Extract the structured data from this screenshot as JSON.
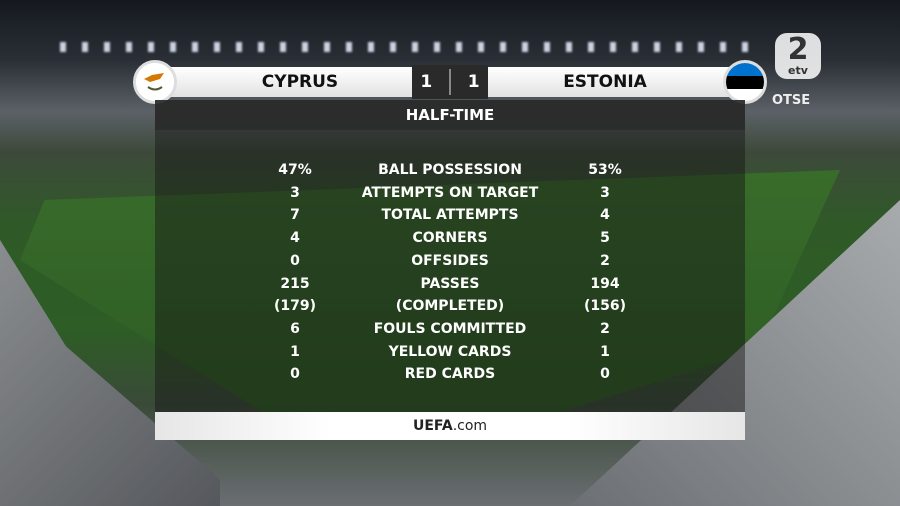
{
  "broadcaster": {
    "channel": "2",
    "network": "etv",
    "live_label": "OTSE"
  },
  "match": {
    "home_team": "CYPRUS",
    "away_team": "ESTONIA",
    "home_score": "1",
    "away_score": "1",
    "status": "HALF-TIME"
  },
  "stats": [
    {
      "label": "BALL POSSESSION",
      "home": "47%",
      "away": "53%"
    },
    {
      "label": "ATTEMPTS ON TARGET",
      "home": "3",
      "away": "3"
    },
    {
      "label": "TOTAL ATTEMPTS",
      "home": "7",
      "away": "4"
    },
    {
      "label": "CORNERS",
      "home": "4",
      "away": "5"
    },
    {
      "label": "OFFSIDES",
      "home": "0",
      "away": "2"
    },
    {
      "label": "PASSES",
      "home": "215",
      "away": "194"
    },
    {
      "label": "(COMPLETED)",
      "home": "(179)",
      "away": "(156)"
    },
    {
      "label": "FOULS COMMITTED",
      "home": "6",
      "away": "2"
    },
    {
      "label": "YELLOW CARDS",
      "home": "1",
      "away": "1"
    },
    {
      "label": "RED CARDS",
      "home": "0",
      "away": "0"
    }
  ],
  "footer": {
    "brand": "UEFA",
    "suffix": ".com"
  },
  "colors": {
    "estonia_blue": "#0072ce",
    "cyprus_copper": "#d57800",
    "cyprus_olive": "#4e5b31"
  }
}
